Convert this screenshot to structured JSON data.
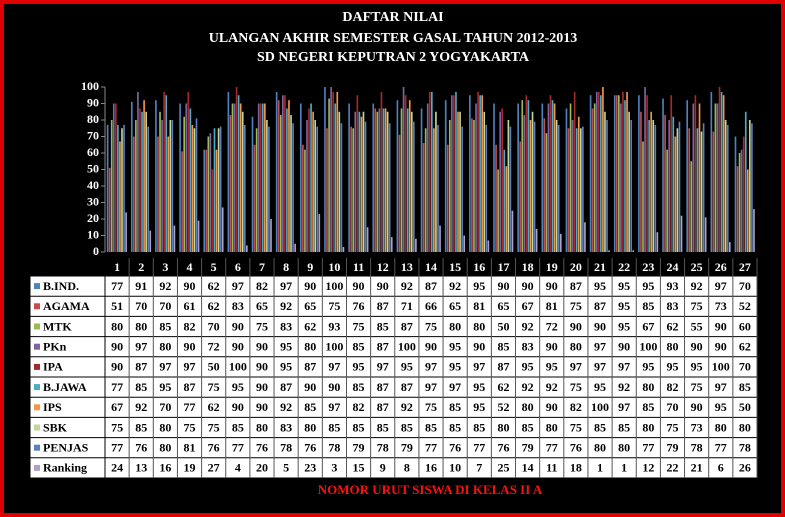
{
  "chart_data": {
    "type": "bar",
    "title": "DAFTAR NILAI",
    "subtitle": [
      "ULANGAN AKHIR SEMESTER GASAL TAHUN 2012-2013",
      "SD NEGERI KEPUTRAN 2 YOGYAKARTA"
    ],
    "x_label": "NOMOR URUT SISWA DI KELAS II A",
    "categories": [
      "1",
      "2",
      "3",
      "4",
      "5",
      "6",
      "7",
      "8",
      "9",
      "10",
      "11",
      "12",
      "13",
      "14",
      "15",
      "16",
      "17",
      "18",
      "19",
      "20",
      "21",
      "22",
      "23",
      "24",
      "25",
      "26",
      "27"
    ],
    "ylim": [
      0,
      100
    ],
    "yticks": [
      0,
      10,
      20,
      30,
      40,
      50,
      60,
      70,
      80,
      90,
      100
    ],
    "grid": false,
    "series": [
      {
        "name": "B.IND.",
        "color": "#4f81bd",
        "values": [
          77,
          91,
          92,
          90,
          62,
          97,
          82,
          97,
          90,
          100,
          90,
          90,
          92,
          87,
          92,
          95,
          90,
          90,
          90,
          87,
          95,
          95,
          95,
          93,
          92,
          97,
          70
        ]
      },
      {
        "name": "AGAMA",
        "color": "#c0504d",
        "values": [
          51,
          70,
          70,
          61,
          62,
          83,
          65,
          92,
          65,
          75,
          76,
          87,
          71,
          66,
          65,
          81,
          65,
          67,
          81,
          75,
          87,
          95,
          85,
          83,
          75,
          73,
          52
        ]
      },
      {
        "name": "MTK",
        "color": "#9bbb59",
        "values": [
          80,
          80,
          85,
          82,
          70,
          90,
          75,
          83,
          62,
          93,
          75,
          85,
          87,
          75,
          80,
          80,
          50,
          92,
          72,
          90,
          90,
          95,
          67,
          62,
          55,
          90,
          60
        ]
      },
      {
        "name": "PKn",
        "color": "#8064a2",
        "values": [
          90,
          97,
          80,
          90,
          72,
          90,
          90,
          95,
          80,
          100,
          85,
          87,
          100,
          90,
          95,
          90,
          85,
          83,
          90,
          80,
          97,
          90,
          100,
          80,
          90,
          90,
          62
        ]
      },
      {
        "name": "IPA",
        "color": "#a32b2b",
        "values": [
          90,
          87,
          97,
          97,
          50,
          100,
          90,
          95,
          87,
          97,
          95,
          97,
          95,
          97,
          95,
          97,
          87,
          95,
          95,
          97,
          97,
          97,
          95,
          95,
          95,
          100,
          70
        ]
      },
      {
        "name": "B.JAWA",
        "color": "#4bacc6",
        "values": [
          77,
          85,
          95,
          87,
          75,
          95,
          90,
          87,
          90,
          90,
          85,
          87,
          87,
          97,
          97,
          95,
          62,
          92,
          92,
          75,
          95,
          92,
          80,
          82,
          75,
          97,
          85
        ]
      },
      {
        "name": "IPS",
        "color": "#f79646",
        "values": [
          67,
          92,
          70,
          77,
          62,
          90,
          90,
          92,
          85,
          97,
          82,
          87,
          92,
          75,
          85,
          95,
          52,
          80,
          90,
          82,
          100,
          97,
          85,
          70,
          90,
          95,
          50
        ]
      },
      {
        "name": "SBK",
        "color": "#c3d69b",
        "values": [
          75,
          85,
          80,
          75,
          75,
          85,
          80,
          83,
          80,
          85,
          85,
          85,
          85,
          85,
          85,
          85,
          80,
          85,
          80,
          75,
          85,
          85,
          80,
          75,
          73,
          80,
          80
        ]
      },
      {
        "name": "PENJAS",
        "color": "#5b7fbf",
        "values": [
          77,
          76,
          80,
          81,
          76,
          77,
          76,
          78,
          76,
          78,
          79,
          78,
          79,
          77,
          76,
          77,
          76,
          79,
          77,
          76,
          80,
          80,
          77,
          79,
          78,
          77,
          78
        ]
      },
      {
        "name": "Ranking",
        "color": "#b2a1c7",
        "values": [
          24,
          13,
          16,
          19,
          27,
          4,
          20,
          5,
          23,
          3,
          15,
          9,
          8,
          16,
          10,
          7,
          25,
          14,
          11,
          18,
          1,
          1,
          12,
          22,
          21,
          6,
          26
        ]
      }
    ]
  }
}
